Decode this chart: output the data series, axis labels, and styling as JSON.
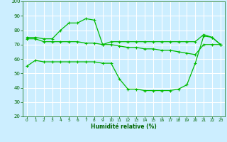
{
  "xlabel": "Humidité relative (%)",
  "bg_color": "#cceeff",
  "grid_color": "#ffffff",
  "line_color": "#00bb00",
  "ylim": [
    20,
    100
  ],
  "xlim": [
    -0.5,
    23.5
  ],
  "yticks": [
    20,
    30,
    40,
    50,
    60,
    70,
    80,
    90,
    100
  ],
  "xticks": [
    0,
    1,
    2,
    3,
    4,
    5,
    6,
    7,
    8,
    9,
    10,
    11,
    12,
    13,
    14,
    15,
    16,
    17,
    18,
    19,
    20,
    21,
    22,
    23
  ],
  "line1_x": [
    0,
    1,
    2,
    3,
    4,
    5,
    6,
    7,
    8,
    9,
    10,
    11,
    12,
    13,
    14,
    15,
    16,
    17,
    18,
    19,
    20,
    21,
    22,
    23
  ],
  "line1_y": [
    75,
    75,
    74,
    74,
    80,
    85,
    85,
    88,
    87,
    70,
    72,
    72,
    72,
    72,
    72,
    72,
    72,
    72,
    72,
    72,
    72,
    77,
    75,
    70
  ],
  "line2_x": [
    0,
    1,
    2,
    3,
    4,
    5,
    6,
    7,
    8,
    9,
    10,
    11,
    12,
    13,
    14,
    15,
    16,
    17,
    18,
    19,
    20,
    21,
    22,
    23
  ],
  "line2_y": [
    74,
    74,
    72,
    72,
    72,
    72,
    72,
    71,
    71,
    70,
    70,
    69,
    68,
    68,
    67,
    67,
    66,
    66,
    65,
    64,
    63,
    70,
    70,
    70
  ],
  "line3_x": [
    0,
    1,
    2,
    3,
    4,
    5,
    6,
    7,
    8,
    9,
    10,
    11,
    12,
    13,
    14,
    15,
    16,
    17,
    18,
    19,
    20,
    21,
    22,
    23
  ],
  "line3_y": [
    55,
    59,
    58,
    58,
    58,
    58,
    58,
    58,
    58,
    57,
    57,
    46,
    39,
    39,
    38,
    38,
    38,
    38,
    39,
    42,
    57,
    76,
    75,
    70
  ]
}
